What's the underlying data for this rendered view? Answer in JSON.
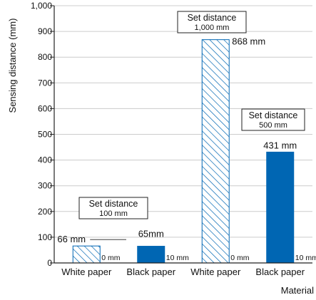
{
  "chart_data": {
    "type": "bar",
    "ylabel": "Sensing distance (mm)",
    "xlabel": "Material",
    "ylim": [
      0,
      1000
    ],
    "yticks": [
      "0",
      "100",
      "200",
      "300",
      "400",
      "500",
      "600",
      "700",
      "800",
      "900",
      "1,000"
    ],
    "categories": [
      "White paper",
      "Black paper",
      "White paper",
      "Black paper"
    ],
    "bars": [
      {
        "category": "White paper",
        "value": 66,
        "style": "hatched",
        "label": "66 mm",
        "base_label": "0 mm"
      },
      {
        "category": "Black paper",
        "value": 65,
        "style": "solid",
        "label": "65mm",
        "base_label": "10 mm"
      },
      {
        "category": "White paper",
        "value": 868,
        "style": "hatched",
        "label": "868 mm",
        "base_label": "0 mm"
      },
      {
        "category": "Black paper",
        "value": 431,
        "style": "solid",
        "label": "431 mm",
        "base_label": "10 mm"
      }
    ],
    "groups": [
      {
        "line1": "Set distance",
        "line2": "100 mm",
        "set_value": 100
      },
      {
        "line1": "Set distance",
        "line2": "1,000 mm",
        "set_value": 1000
      },
      {
        "line1": "Set distance",
        "line2": "500 mm",
        "set_value": 500
      }
    ],
    "colors": {
      "solid": "#0066b3",
      "hatch": "#0066b3",
      "axis": "#222222"
    },
    "grid": "horizontal"
  }
}
